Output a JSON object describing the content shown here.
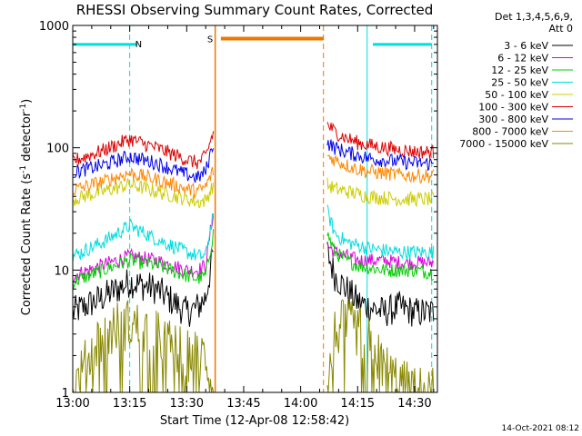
{
  "chart_data": {
    "type": "line",
    "title": "RHESSI Observing Summary Count Rates, Corrected",
    "xlabel": "Start Time (12-Apr-08 12:58:42)",
    "ylabel_main": "Corrected Count Rate (s",
    "ylabel_sup1": "-1",
    "ylabel_mid": " detector",
    "ylabel_sup2": "-1",
    "ylabel_end": ")",
    "yscale": "log",
    "ylim": [
      1,
      1000
    ],
    "xlim_minutes": [
      0,
      96
    ],
    "x_ticks": [
      {
        "v": 0,
        "label": "13:00"
      },
      {
        "v": 15,
        "label": "13:15"
      },
      {
        "v": 30,
        "label": "13:30"
      },
      {
        "v": 45,
        "label": "13:45"
      },
      {
        "v": 60,
        "label": "14:00"
      },
      {
        "v": 75,
        "label": "14:15"
      },
      {
        "v": 90,
        "label": "14:30"
      }
    ],
    "y_ticks": [
      {
        "v": 1,
        "label": "1"
      },
      {
        "v": 10,
        "label": "10"
      },
      {
        "v": 100,
        "label": "100"
      },
      {
        "v": 1000,
        "label": "1000"
      }
    ],
    "legend_header": [
      "Det 1,3,4,5,6,9,",
      "Att 0"
    ],
    "series": [
      {
        "name": "3 - 6 keV",
        "color": "#000000",
        "x": [
          0,
          8,
          15,
          22,
          30,
          33,
          35,
          37,
          67,
          69,
          72,
          75,
          78,
          82,
          86,
          90,
          95
        ],
        "y": [
          4.5,
          6,
          8,
          7,
          4.5,
          5,
          6,
          14,
          14,
          9,
          7,
          5.5,
          5,
          4.5,
          5,
          4.5,
          4.5
        ]
      },
      {
        "name": "6 - 12 keV",
        "color": "#dd00dd",
        "x": [
          0,
          8,
          15,
          22,
          30,
          33,
          35,
          37,
          67,
          69,
          72,
          75,
          78,
          82,
          86,
          90,
          95
        ],
        "y": [
          9,
          11,
          13,
          12,
          10,
          10,
          11,
          30,
          16,
          14,
          13,
          12,
          12,
          12,
          11.5,
          11.5,
          11.5
        ]
      },
      {
        "name": "12 - 25 keV",
        "color": "#00cc00",
        "x": [
          0,
          8,
          15,
          22,
          30,
          33,
          35,
          37,
          67,
          69,
          72,
          75,
          78,
          82,
          86,
          90,
          95
        ],
        "y": [
          8,
          10,
          12,
          11,
          9,
          8.5,
          9,
          20,
          20,
          14,
          12,
          11,
          10.5,
          10,
          10,
          10,
          9.5
        ]
      },
      {
        "name": "25 - 50 keV",
        "color": "#00dddd",
        "x": [
          0,
          8,
          15,
          22,
          30,
          33,
          35,
          37,
          67,
          69,
          72,
          75,
          78,
          82,
          86,
          90,
          95
        ],
        "y": [
          13,
          17,
          23,
          18,
          14,
          13,
          13,
          30,
          30,
          20,
          17,
          16,
          15,
          14.5,
          14,
          14,
          14
        ]
      },
      {
        "name": "50 - 100 keV",
        "color": "#cccc00",
        "x": [
          0,
          8,
          15,
          22,
          30,
          33,
          35,
          37,
          67,
          69,
          72,
          75,
          78,
          82,
          86,
          90,
          95
        ],
        "y": [
          38,
          44,
          50,
          44,
          38,
          36,
          37,
          50,
          50,
          46,
          44,
          42,
          40,
          39,
          38,
          38,
          38
        ]
      },
      {
        "name": "100 - 300 keV",
        "color": "#dd0000",
        "x": [
          0,
          8,
          15,
          22,
          30,
          33,
          35,
          37,
          67,
          69,
          72,
          75,
          78,
          82,
          86,
          90,
          95
        ],
        "y": [
          78,
          95,
          118,
          100,
          80,
          75,
          85,
          135,
          155,
          135,
          120,
          110,
          105,
          100,
          96,
          93,
          92
        ]
      },
      {
        "name": "300 - 800 keV",
        "color": "#0000ee",
        "x": [
          0,
          8,
          15,
          22,
          30,
          33,
          35,
          37,
          67,
          69,
          72,
          75,
          78,
          82,
          86,
          90,
          95
        ],
        "y": [
          63,
          72,
          85,
          75,
          60,
          57,
          64,
          110,
          110,
          100,
          92,
          87,
          82,
          79,
          77,
          75,
          74
        ]
      },
      {
        "name": "800 - 7000 keV",
        "color": "#ff8800",
        "x": [
          0,
          8,
          15,
          22,
          30,
          33,
          35,
          37,
          67,
          69,
          72,
          75,
          78,
          82,
          86,
          90,
          95
        ],
        "y": [
          45,
          53,
          62,
          55,
          46,
          44,
          48,
          65,
          85,
          80,
          72,
          67,
          64,
          62,
          60,
          59,
          59
        ]
      },
      {
        "name": "7000 - 15000 keV",
        "color": "#888800",
        "x": [
          0,
          6,
          12,
          15,
          20,
          25,
          30,
          33,
          35,
          37,
          67,
          69,
          71,
          72,
          75,
          78,
          82,
          86,
          90,
          95
        ],
        "y": [
          1,
          2.5,
          3.5,
          3.6,
          3.2,
          2.5,
          2,
          2,
          2,
          1,
          1,
          3,
          3.5,
          3.6,
          3.2,
          2.5,
          1.6,
          1.2,
          1,
          1
        ]
      }
    ],
    "night_bars": [
      {
        "x0": 0,
        "x1": 15,
        "y": 700,
        "color": "#00dddd"
      },
      {
        "x0": 15,
        "x1": 17,
        "y": 700,
        "color": "#00dddd",
        "label": "N"
      },
      {
        "x0": 79,
        "x1": 94.5,
        "y": 700,
        "color": "#00dddd"
      }
    ],
    "saa_bar": {
      "x0": 39,
      "x1": 66,
      "y": 780,
      "color": "#ee7700",
      "label": "S"
    },
    "vlines": [
      {
        "x": 0,
        "color": "#00dddd",
        "style": "solid"
      },
      {
        "x": 15,
        "color": "#00dddd",
        "style": "dash"
      },
      {
        "x": 37.5,
        "color": "#ee7700",
        "style": "solid"
      },
      {
        "x": 66,
        "color": "#ee7700",
        "style": "dash"
      },
      {
        "x": 77.5,
        "color": "#00dddd",
        "style": "solid"
      },
      {
        "x": 94.5,
        "color": "#00dddd",
        "style": "dash"
      }
    ],
    "timestamp": "14-Oct-2021 08:12"
  }
}
